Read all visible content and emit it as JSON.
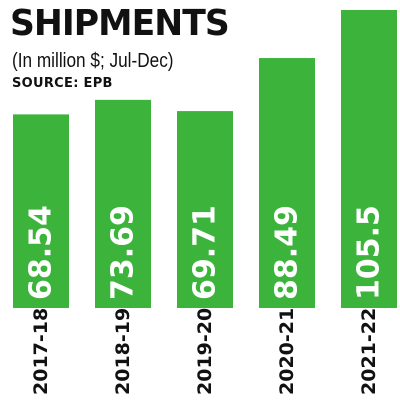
{
  "header": {
    "title": "SHIPMENTS",
    "subtitle": "(In million $; Jul-Dec)",
    "source": "SOURCE: EPB"
  },
  "colors": {
    "bar": "#3cb43c",
    "value_text": "#ffffff",
    "axis_label_text": "#111111"
  },
  "chart_data": {
    "type": "bar",
    "title": "SHIPMENTS",
    "subtitle": "(In million $; Jul-Dec)",
    "source": "SOURCE: EPB",
    "categories": [
      "2017-18",
      "2018-19",
      "2019-20",
      "2020-21",
      "2021-22"
    ],
    "values": [
      68.54,
      73.69,
      69.71,
      88.49,
      105.5
    ],
    "value_labels": [
      "68.54",
      "73.69",
      "69.71",
      "88.49",
      "105.5"
    ],
    "xlabel": "",
    "ylabel": "",
    "ylim": [
      0,
      105.5
    ],
    "grid": false,
    "legend": "none",
    "label_orientation": "vertical"
  }
}
